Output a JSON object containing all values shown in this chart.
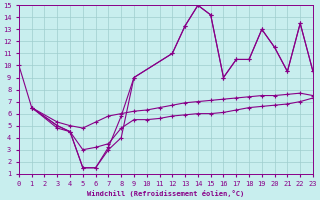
{
  "xlabel": "Windchill (Refroidissement éolien,°C)",
  "xlim": [
    0,
    23
  ],
  "ylim": [
    1,
    15
  ],
  "xticks": [
    0,
    1,
    2,
    3,
    4,
    5,
    6,
    7,
    8,
    9,
    10,
    11,
    12,
    13,
    14,
    15,
    16,
    17,
    18,
    19,
    20,
    21,
    22,
    23
  ],
  "yticks": [
    1,
    2,
    3,
    4,
    5,
    6,
    7,
    8,
    9,
    10,
    11,
    12,
    13,
    14,
    15
  ],
  "bg_color": "#c8eeee",
  "grid_color": "#9fcece",
  "line_color": "#880088",
  "lines": [
    {
      "x": [
        0,
        1,
        3,
        4,
        5,
        6,
        7,
        8,
        9,
        12,
        13,
        14,
        15,
        16,
        17,
        18,
        19,
        20,
        21,
        22,
        23
      ],
      "y": [
        10,
        6.5,
        5,
        4.5,
        1.5,
        1.5,
        3.0,
        4.0,
        9.0,
        11.0,
        13.3,
        15.0,
        14.2,
        9.0,
        10.5,
        10.5,
        13.0,
        11.5,
        9.5,
        13.5,
        9.5
      ]
    },
    {
      "x": [
        1,
        3,
        4,
        5,
        6,
        7,
        8,
        9,
        12,
        13,
        14,
        15,
        16,
        17,
        18,
        19,
        20,
        21,
        22,
        23
      ],
      "y": [
        6.5,
        5,
        4.5,
        1.5,
        1.5,
        3.2,
        5.8,
        9.0,
        11.0,
        13.3,
        15.0,
        14.2,
        9.0,
        10.5,
        10.5,
        13.0,
        11.5,
        9.5,
        13.5,
        9.5
      ]
    },
    {
      "x": [
        1,
        3,
        4,
        5,
        6,
        7,
        8,
        9,
        10,
        11,
        12,
        13,
        14,
        15,
        16,
        17,
        18,
        19,
        20,
        21,
        22,
        23
      ],
      "y": [
        6.5,
        5.3,
        5.0,
        4.8,
        5.3,
        5.8,
        6.0,
        6.2,
        6.3,
        6.5,
        6.7,
        6.9,
        7.0,
        7.1,
        7.2,
        7.3,
        7.4,
        7.5,
        7.5,
        7.6,
        7.7,
        7.5
      ]
    },
    {
      "x": [
        1,
        3,
        4,
        5,
        6,
        7,
        8,
        9,
        10,
        11,
        12,
        13,
        14,
        15,
        16,
        17,
        18,
        19,
        20,
        21,
        22,
        23
      ],
      "y": [
        6.5,
        4.8,
        4.5,
        3.0,
        3.2,
        3.5,
        4.8,
        5.5,
        5.5,
        5.6,
        5.8,
        5.9,
        6.0,
        6.0,
        6.1,
        6.3,
        6.5,
        6.6,
        6.7,
        6.8,
        7.0,
        7.3
      ]
    }
  ]
}
